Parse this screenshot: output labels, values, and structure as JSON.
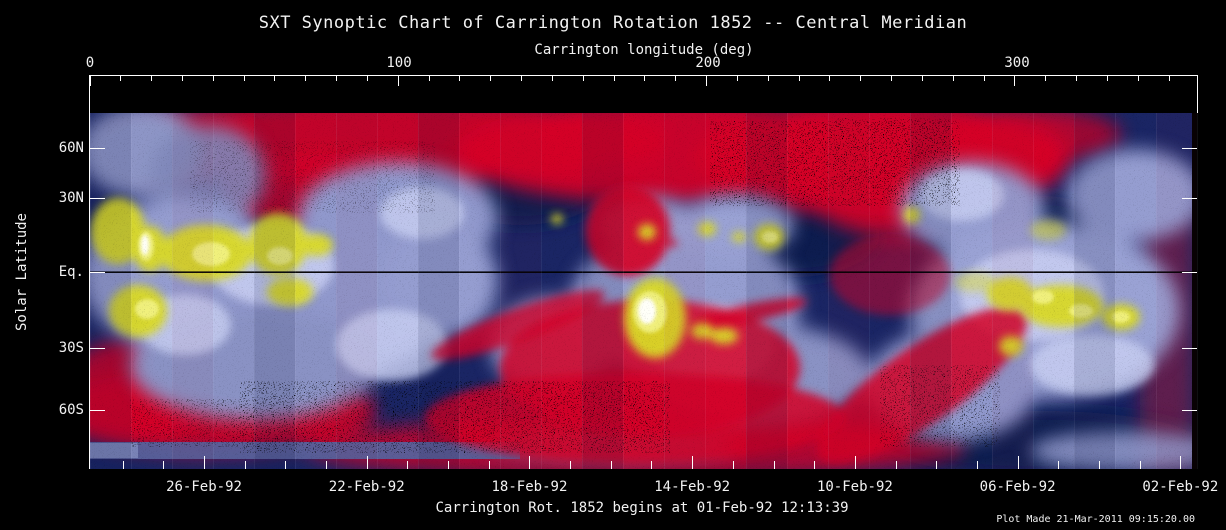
{
  "title": "SXT Synoptic Chart of Carrington Rotation 1852 -- Central Meridian",
  "axes": {
    "top": {
      "label": "Carrington longitude (deg)",
      "ticks": [
        "0",
        "100",
        "200",
        "300"
      ]
    },
    "left": {
      "label": "Solar Latitude",
      "ticks": [
        "60N",
        "30N",
        "Eq.",
        "30S",
        "60S"
      ]
    },
    "bottom": {
      "ticks": [
        "26-Feb-92",
        "22-Feb-92",
        "18-Feb-92",
        "14-Feb-92",
        "10-Feb-92",
        "06-Feb-92",
        "02-Feb-92"
      ]
    }
  },
  "footer": {
    "note": "Carrington Rot. 1852 begins at 01-Feb-92 12:13:39",
    "plot_made": "Plot Made 21-Mar-2011 09:15:20.00"
  },
  "chart_data": {
    "type": "heatmap",
    "title": "SXT Synoptic Chart of Carrington Rotation 1852 -- Central Meridian",
    "description": "Soft X-ray false-color synoptic map of the solar corona built from daily central-meridian strips over one Carrington rotation; time runs right (01-Feb-92) to left (late Feb-92).",
    "x_axis": {
      "label": "Carrington longitude (deg)",
      "range": [
        0,
        360
      ],
      "tick_values": [
        0,
        100,
        200,
        300
      ],
      "minor_tick_step_deg": 10
    },
    "y_axis": {
      "label": "Solar Latitude",
      "tick_labels": [
        "60N",
        "30N",
        "Eq.",
        "30S",
        "60S"
      ],
      "tick_values_deg": [
        60,
        30,
        0,
        -30,
        -60
      ]
    },
    "time_axis": {
      "tick_labels": [
        "26-Feb-92",
        "22-Feb-92",
        "18-Feb-92",
        "14-Feb-92",
        "10-Feb-92",
        "06-Feb-92",
        "02-Feb-92"
      ],
      "major_tick_interval_days": 4,
      "minor_tick_interval_days": 1,
      "direction": "date decreases from left to right"
    },
    "rotation": {
      "number": 1852,
      "begins": "01-Feb-92 12:13:39"
    },
    "grid": false,
    "palette": {
      "background": "#000000",
      "axis_and_text": "#ffffff",
      "low_intensity_red": "#d50226",
      "mid_intensity_navy": "#1a2564",
      "quiet_corona_lavender": "#9aa2d4",
      "active_region_yellow": "#d9d928",
      "brightest_core_white": "#ffffff",
      "equator_line": "#000000",
      "noise_speckles": "#000000"
    },
    "features": {
      "equator_line_at_lat_0": true,
      "daily_strip_seams_visible": true,
      "active_region_bands": [
        {
          "carrington_longitude_range": [
            0,
            80
          ],
          "latitude_range_deg": [
            -25,
            20
          ],
          "note": "cluster of bright yellow active regions, left edge of map"
        },
        {
          "carrington_longitude_range": [
            170,
            215
          ],
          "latitude_range_deg": [
            -25,
            15
          ],
          "note": "brightest region of map; white core near lon 178, lat -15"
        },
        {
          "carrington_longitude_range": [
            295,
            345
          ],
          "latitude_range_deg": [
            -20,
            10
          ],
          "note": "bright yellow band on right side"
        }
      ],
      "dark_speckled_low_intensity_zones": [
        {
          "carrington_longitude_range": [
            55,
            215
          ],
          "latitude": "south of -40 deg"
        },
        {
          "carrington_longitude_range": [
            200,
            280
          ],
          "latitude": "north of +40 deg"
        },
        {
          "carrington_longitude_range": [
            255,
            295
          ],
          "latitude": "-30 to -55 deg"
        }
      ]
    }
  }
}
